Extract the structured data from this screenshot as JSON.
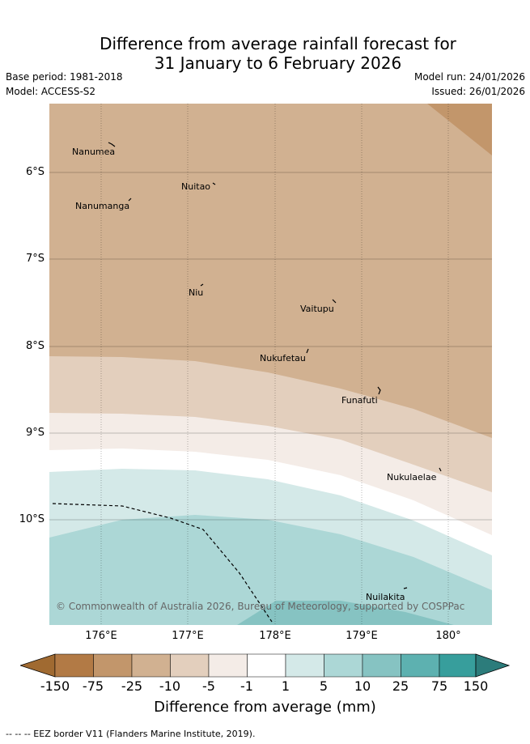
{
  "header": {
    "title_line1": "Difference from average rainfall forecast for",
    "title_line2": "31 January to 6 February 2026",
    "base_period": "Base period: 1981-2018",
    "model": "Model: ACCESS-S2",
    "model_run": "Model run: 24/01/2026",
    "issued": "Issued: 26/01/2026"
  },
  "map": {
    "lat_labels": [
      "6°S",
      "7°S",
      "8°S",
      "9°S",
      "10°S"
    ],
    "lon_labels": [
      "176°E",
      "177°E",
      "178°E",
      "179°E",
      "180°"
    ],
    "places": [
      "Nanumea",
      "Nuitao",
      "Nanumanga",
      "Niu",
      "Vaitupu",
      "Nukufetau",
      "Funafuti",
      "Nukulaelae",
      "Nuilakita"
    ],
    "copyright": "© Commonwealth of Australia 2026, Bureau of Meteorology, supported by COSPPac"
  },
  "colorbar": {
    "ticks": [
      "-150",
      "-75",
      "-25",
      "-10",
      "-5",
      "-1",
      "1",
      "5",
      "10",
      "25",
      "75",
      "150"
    ],
    "colors": [
      "#a06a31",
      "#b27a45",
      "#c2966b",
      "#d1b191",
      "#e3cfbd",
      "#f4ece7",
      "#ffffff",
      "#d4e9e8",
      "#acd7d6",
      "#86c3c2",
      "#5db1b0",
      "#379e9c",
      "#2c7c7b"
    ],
    "title": "Difference from average (mm)"
  },
  "footer": {
    "legend_text": "--  --  -- EEZ border V11 (Flanders Marine Institute, 2019)."
  }
}
